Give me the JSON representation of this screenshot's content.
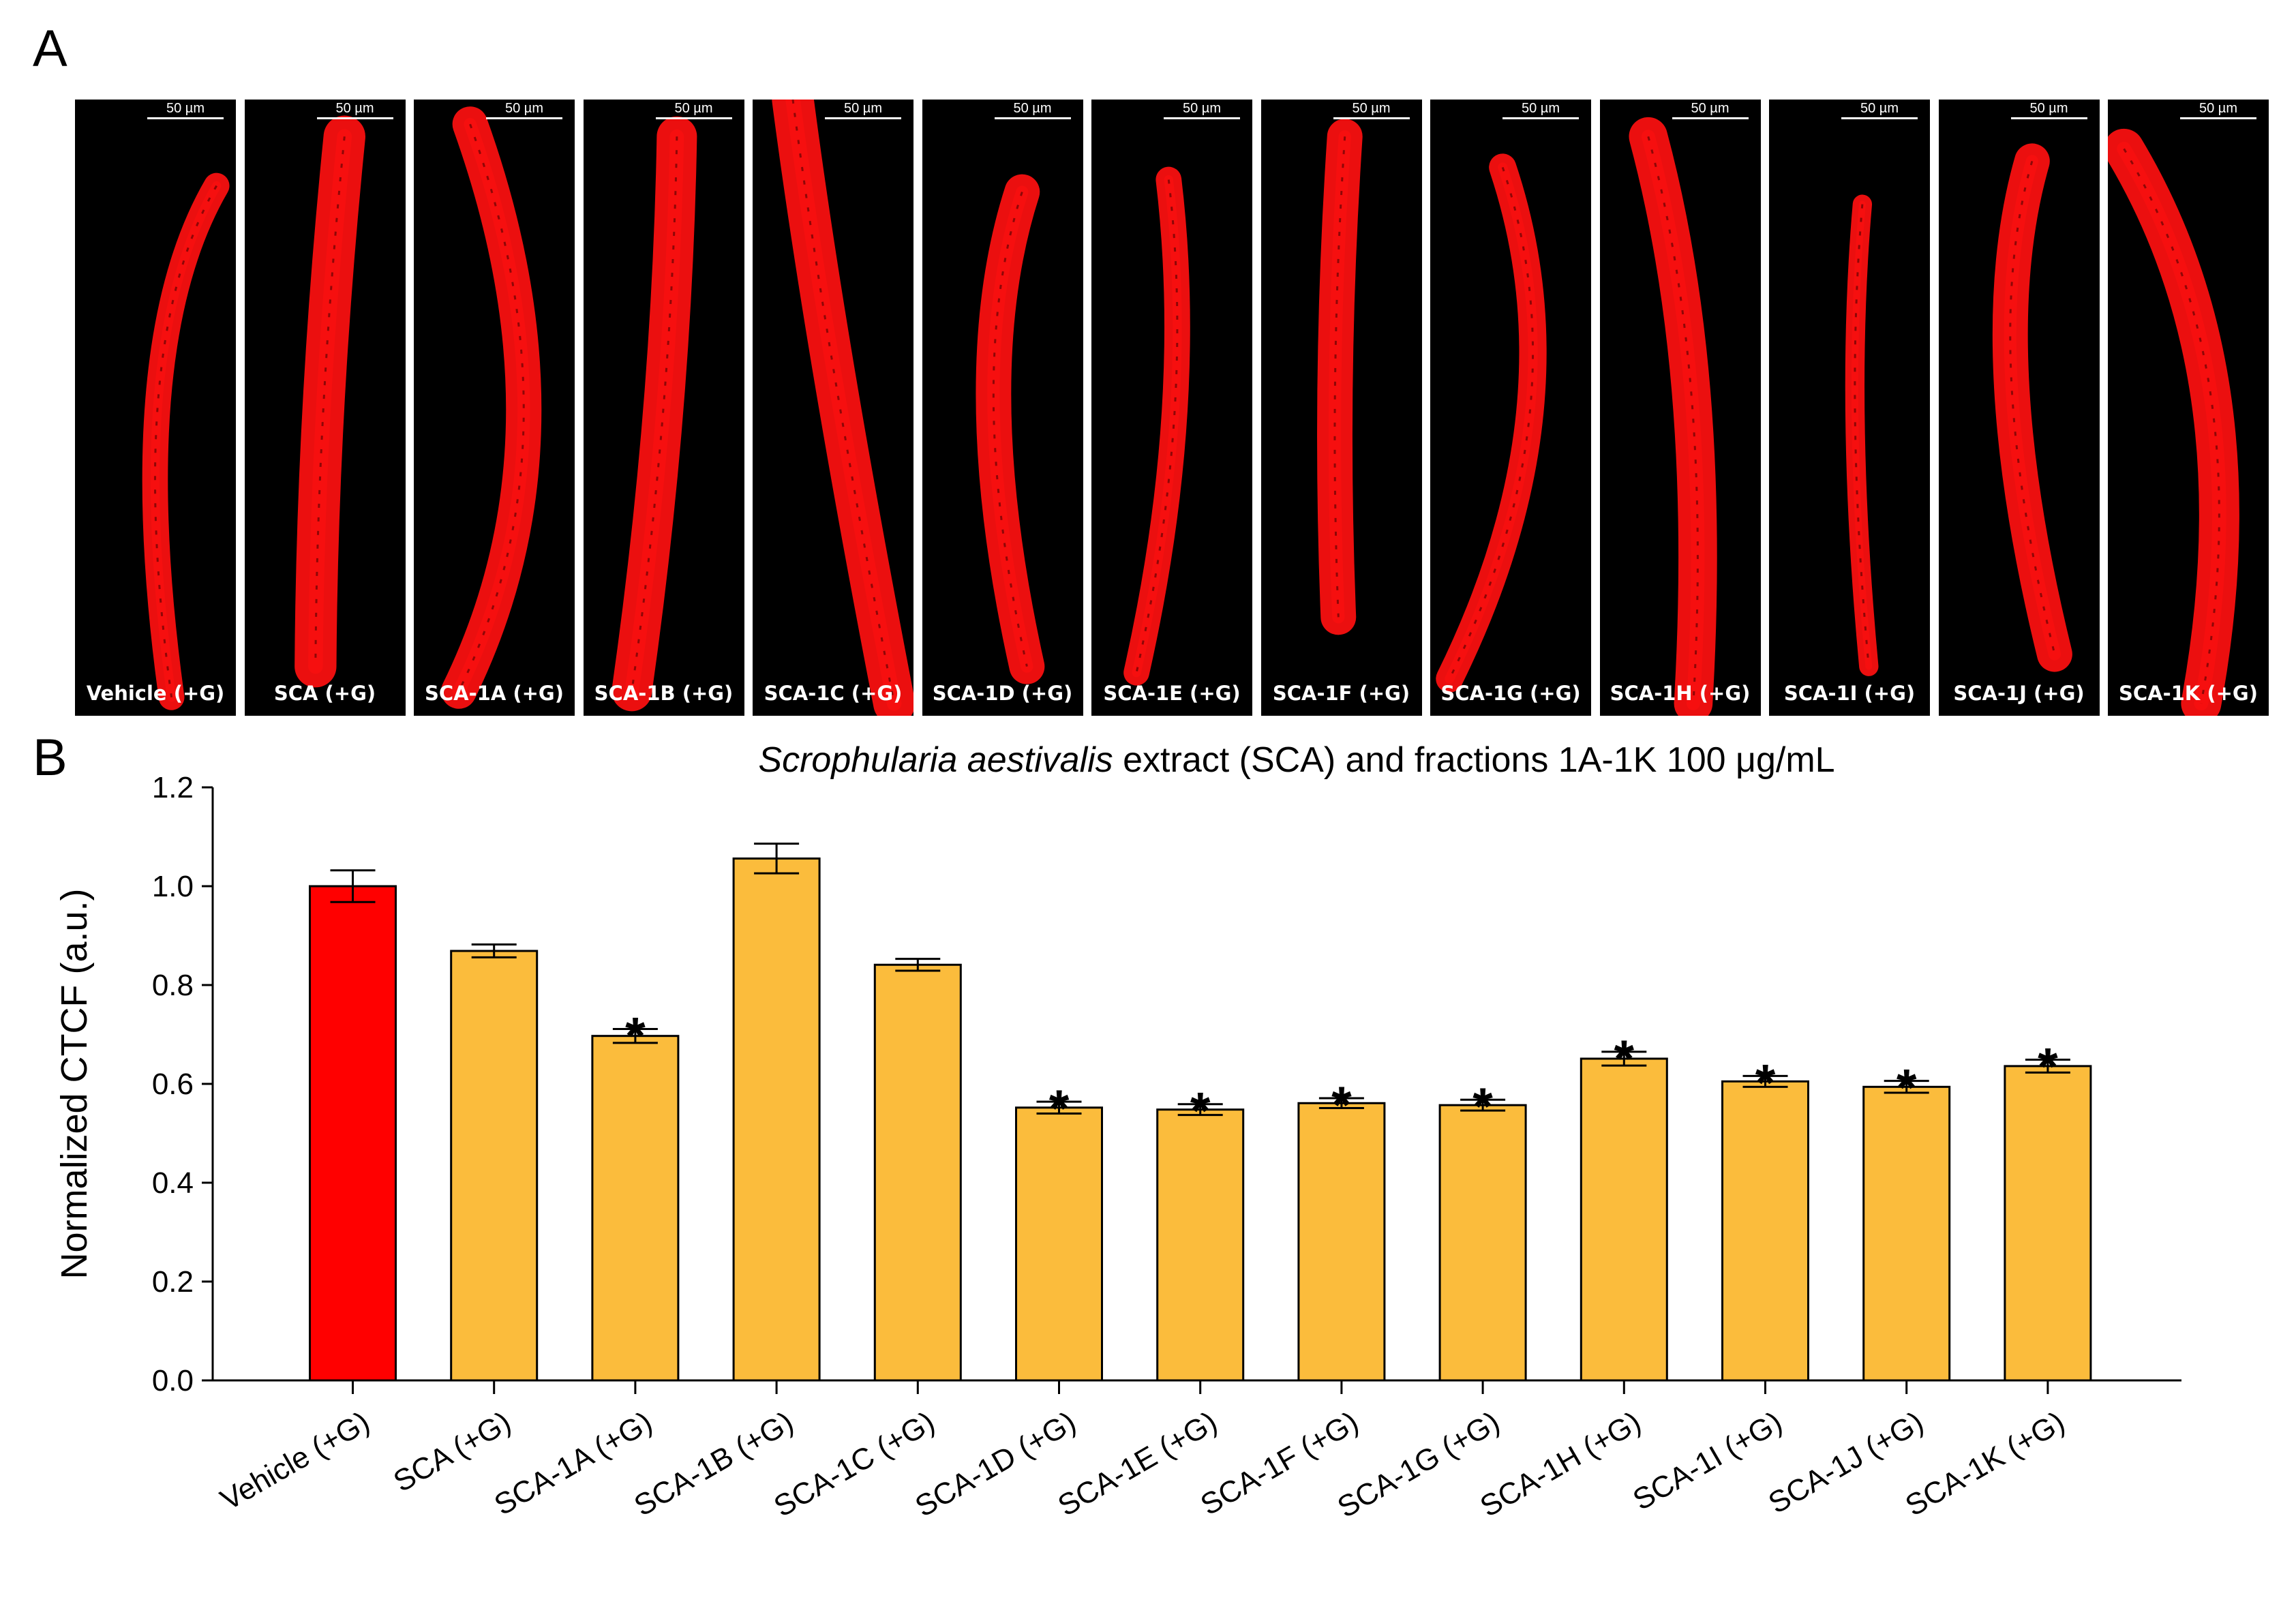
{
  "panel_labels": {
    "a": "A",
    "b": "B"
  },
  "micrographs": {
    "scale_label": "50 µm",
    "items": [
      {
        "label": "Vehicle (+G)"
      },
      {
        "label": "SCA (+G)"
      },
      {
        "label": "SCA-1A (+G)"
      },
      {
        "label": "SCA-1B (+G)"
      },
      {
        "label": "SCA-1C (+G)"
      },
      {
        "label": "SCA-1D (+G)"
      },
      {
        "label": "SCA-1E (+G)"
      },
      {
        "label": "SCA-1F (+G)"
      },
      {
        "label": "SCA-1G (+G)"
      },
      {
        "label": "SCA-1H (+G)"
      },
      {
        "label": "SCA-1I (+G)"
      },
      {
        "label": "SCA-1J (+G)"
      },
      {
        "label": "SCA-1K (+G)"
      }
    ]
  },
  "colors": {
    "control_bar": "#ff0000",
    "treatment_bar": "#fbbc3c",
    "worm": "#ff1010",
    "micrograph_background": "#000000"
  },
  "chart_data": {
    "type": "bar",
    "title": {
      "italic": "Scrophularia aestivalis",
      "rest": " extract (SCA) and fractions 1A-1K 100 μg/mL"
    },
    "xlabel": "",
    "ylabel": "Normalized CTCF (a.u.)",
    "ylim": [
      0,
      1.2
    ],
    "yticks": [
      "0.0",
      "0.2",
      "0.4",
      "0.6",
      "0.8",
      "1.0",
      "1.2"
    ],
    "significance_marker": "*",
    "categories": [
      "Vehicle (+G)",
      "SCA (+G)",
      "SCA-1A (+G)",
      "SCA-1B (+G)",
      "SCA-1C (+G)",
      "SCA-1D (+G)",
      "SCA-1E (+G)",
      "SCA-1F (+G)",
      "SCA-1G (+G)",
      "SCA-1H (+G)",
      "SCA-1I (+G)",
      "SCA-1J (+G)",
      "SCA-1K (+G)"
    ],
    "values": [
      1.0,
      0.869,
      0.697,
      1.056,
      0.841,
      0.552,
      0.548,
      0.561,
      0.557,
      0.651,
      0.605,
      0.594,
      0.636
    ],
    "errors": [
      0.032,
      0.013,
      0.014,
      0.03,
      0.012,
      0.012,
      0.011,
      0.01,
      0.011,
      0.014,
      0.011,
      0.012,
      0.013
    ],
    "significant": [
      false,
      false,
      true,
      false,
      false,
      true,
      true,
      true,
      true,
      true,
      true,
      true,
      true
    ],
    "control_index": 0
  }
}
